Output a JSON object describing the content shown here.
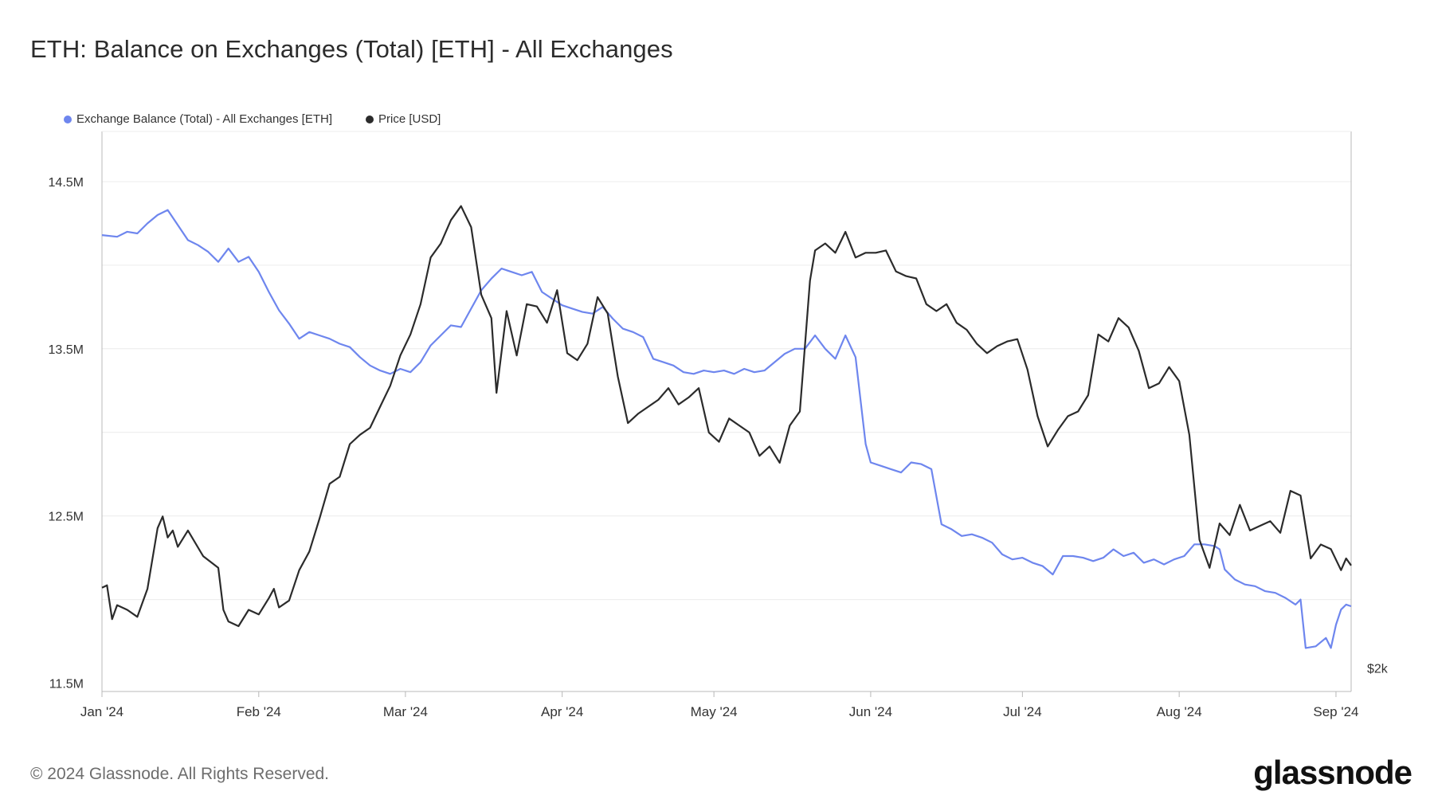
{
  "title": "ETH: Balance on Exchanges (Total) [ETH] - All Exchanges",
  "footer": "© 2024 Glassnode. All Rights Reserved.",
  "logo": "glassnode",
  "colors": {
    "balance": "#6e86ee",
    "price": "#2b2b2b",
    "grid": "#ececec",
    "axis": "#b8b8b8"
  },
  "chart_data": {
    "type": "line",
    "grid": true,
    "legend_position": "top-left",
    "x_ticks": [
      "Jan '24",
      "Feb '24",
      "Mar '24",
      "Apr '24",
      "May '24",
      "Jun '24",
      "Jul '24",
      "Aug '24",
      "Sep '24"
    ],
    "x_range": [
      "2024-01-01",
      "2024-09-04"
    ],
    "left_axis": {
      "ticks": [
        "14.5M",
        "13.5M",
        "12.5M",
        "11.5M"
      ],
      "tick_values": [
        14.5,
        13.5,
        12.5,
        11.5
      ],
      "range": [
        11.45,
        14.8
      ],
      "unit": "M ETH"
    },
    "right_axis": {
      "ticks": [
        "$2k"
      ],
      "tick_values": [
        2000
      ],
      "range": [
        1900,
        4300
      ],
      "unit": "USD"
    },
    "series": [
      {
        "name": "Exchange Balance (Total) - All Exchanges [ETH]",
        "axis": "left",
        "points": [
          [
            "2024-01-01",
            14.18
          ],
          [
            "2024-01-04",
            14.17
          ],
          [
            "2024-01-06",
            14.2
          ],
          [
            "2024-01-08",
            14.19
          ],
          [
            "2024-01-10",
            14.25
          ],
          [
            "2024-01-12",
            14.3
          ],
          [
            "2024-01-14",
            14.33
          ],
          [
            "2024-01-16",
            14.24
          ],
          [
            "2024-01-18",
            14.15
          ],
          [
            "2024-01-20",
            14.12
          ],
          [
            "2024-01-22",
            14.08
          ],
          [
            "2024-01-24",
            14.02
          ],
          [
            "2024-01-26",
            14.1
          ],
          [
            "2024-01-28",
            14.02
          ],
          [
            "2024-01-30",
            14.05
          ],
          [
            "2024-02-01",
            13.96
          ],
          [
            "2024-02-03",
            13.84
          ],
          [
            "2024-02-05",
            13.73
          ],
          [
            "2024-02-07",
            13.65
          ],
          [
            "2024-02-09",
            13.56
          ],
          [
            "2024-02-11",
            13.6
          ],
          [
            "2024-02-13",
            13.58
          ],
          [
            "2024-02-15",
            13.56
          ],
          [
            "2024-02-17",
            13.53
          ],
          [
            "2024-02-19",
            13.51
          ],
          [
            "2024-02-21",
            13.45
          ],
          [
            "2024-02-23",
            13.4
          ],
          [
            "2024-02-25",
            13.37
          ],
          [
            "2024-02-27",
            13.35
          ],
          [
            "2024-02-29",
            13.38
          ],
          [
            "2024-03-02",
            13.36
          ],
          [
            "2024-03-04",
            13.42
          ],
          [
            "2024-03-06",
            13.52
          ],
          [
            "2024-03-08",
            13.58
          ],
          [
            "2024-03-10",
            13.64
          ],
          [
            "2024-03-12",
            13.63
          ],
          [
            "2024-03-14",
            13.74
          ],
          [
            "2024-03-16",
            13.85
          ],
          [
            "2024-03-18",
            13.92
          ],
          [
            "2024-03-20",
            13.98
          ],
          [
            "2024-03-22",
            13.96
          ],
          [
            "2024-03-24",
            13.94
          ],
          [
            "2024-03-26",
            13.96
          ],
          [
            "2024-03-28",
            13.84
          ],
          [
            "2024-03-30",
            13.8
          ],
          [
            "2024-04-01",
            13.76
          ],
          [
            "2024-04-03",
            13.74
          ],
          [
            "2024-04-05",
            13.72
          ],
          [
            "2024-04-07",
            13.71
          ],
          [
            "2024-04-09",
            13.75
          ],
          [
            "2024-04-11",
            13.68
          ],
          [
            "2024-04-13",
            13.62
          ],
          [
            "2024-04-15",
            13.6
          ],
          [
            "2024-04-17",
            13.57
          ],
          [
            "2024-04-19",
            13.44
          ],
          [
            "2024-04-21",
            13.42
          ],
          [
            "2024-04-23",
            13.4
          ],
          [
            "2024-04-25",
            13.36
          ],
          [
            "2024-04-27",
            13.35
          ],
          [
            "2024-04-29",
            13.37
          ],
          [
            "2024-05-01",
            13.36
          ],
          [
            "2024-05-03",
            13.37
          ],
          [
            "2024-05-05",
            13.35
          ],
          [
            "2024-05-07",
            13.38
          ],
          [
            "2024-05-09",
            13.36
          ],
          [
            "2024-05-11",
            13.37
          ],
          [
            "2024-05-13",
            13.42
          ],
          [
            "2024-05-15",
            13.47
          ],
          [
            "2024-05-17",
            13.5
          ],
          [
            "2024-05-19",
            13.5
          ],
          [
            "2024-05-21",
            13.58
          ],
          [
            "2024-05-23",
            13.5
          ],
          [
            "2024-05-25",
            13.44
          ],
          [
            "2024-05-27",
            13.58
          ],
          [
            "2024-05-29",
            13.45
          ],
          [
            "2024-05-31",
            12.93
          ],
          [
            "2024-06-01",
            12.82
          ],
          [
            "2024-06-03",
            12.8
          ],
          [
            "2024-06-05",
            12.78
          ],
          [
            "2024-06-07",
            12.76
          ],
          [
            "2024-06-09",
            12.82
          ],
          [
            "2024-06-11",
            12.81
          ],
          [
            "2024-06-13",
            12.78
          ],
          [
            "2024-06-15",
            12.45
          ],
          [
            "2024-06-17",
            12.42
          ],
          [
            "2024-06-19",
            12.38
          ],
          [
            "2024-06-21",
            12.39
          ],
          [
            "2024-06-23",
            12.37
          ],
          [
            "2024-06-25",
            12.34
          ],
          [
            "2024-06-27",
            12.27
          ],
          [
            "2024-06-29",
            12.24
          ],
          [
            "2024-07-01",
            12.25
          ],
          [
            "2024-07-03",
            12.22
          ],
          [
            "2024-07-05",
            12.2
          ],
          [
            "2024-07-07",
            12.15
          ],
          [
            "2024-07-09",
            12.26
          ],
          [
            "2024-07-11",
            12.26
          ],
          [
            "2024-07-13",
            12.25
          ],
          [
            "2024-07-15",
            12.23
          ],
          [
            "2024-07-17",
            12.25
          ],
          [
            "2024-07-19",
            12.3
          ],
          [
            "2024-07-21",
            12.26
          ],
          [
            "2024-07-23",
            12.28
          ],
          [
            "2024-07-25",
            12.22
          ],
          [
            "2024-07-27",
            12.24
          ],
          [
            "2024-07-29",
            12.21
          ],
          [
            "2024-07-31",
            12.24
          ],
          [
            "2024-08-02",
            12.26
          ],
          [
            "2024-08-04",
            12.33
          ],
          [
            "2024-08-06",
            12.33
          ],
          [
            "2024-08-08",
            12.32
          ],
          [
            "2024-08-09",
            12.3
          ],
          [
            "2024-08-10",
            12.18
          ],
          [
            "2024-08-12",
            12.12
          ],
          [
            "2024-08-14",
            12.09
          ],
          [
            "2024-08-16",
            12.08
          ],
          [
            "2024-08-18",
            12.05
          ],
          [
            "2024-08-20",
            12.04
          ],
          [
            "2024-08-22",
            12.01
          ],
          [
            "2024-08-24",
            11.97
          ],
          [
            "2024-08-25",
            12.0
          ],
          [
            "2024-08-26",
            11.71
          ],
          [
            "2024-08-28",
            11.72
          ],
          [
            "2024-08-30",
            11.77
          ],
          [
            "2024-08-31",
            11.71
          ],
          [
            "2024-09-01",
            11.85
          ],
          [
            "2024-09-02",
            11.94
          ],
          [
            "2024-09-03",
            11.97
          ],
          [
            "2024-09-04",
            11.96
          ]
        ]
      },
      {
        "name": "Price [USD]",
        "axis": "right",
        "points": [
          [
            "2024-01-01",
            2345
          ],
          [
            "2024-01-02",
            2355
          ],
          [
            "2024-01-03",
            2210
          ],
          [
            "2024-01-04",
            2270
          ],
          [
            "2024-01-06",
            2250
          ],
          [
            "2024-01-08",
            2220
          ],
          [
            "2024-01-10",
            2340
          ],
          [
            "2024-01-12",
            2600
          ],
          [
            "2024-01-13",
            2650
          ],
          [
            "2024-01-14",
            2560
          ],
          [
            "2024-01-15",
            2590
          ],
          [
            "2024-01-16",
            2520
          ],
          [
            "2024-01-18",
            2590
          ],
          [
            "2024-01-21",
            2480
          ],
          [
            "2024-01-24",
            2430
          ],
          [
            "2024-01-25",
            2250
          ],
          [
            "2024-01-26",
            2200
          ],
          [
            "2024-01-28",
            2180
          ],
          [
            "2024-01-30",
            2250
          ],
          [
            "2024-02-01",
            2230
          ],
          [
            "2024-02-03",
            2300
          ],
          [
            "2024-02-04",
            2340
          ],
          [
            "2024-02-05",
            2260
          ],
          [
            "2024-02-07",
            2290
          ],
          [
            "2024-02-09",
            2420
          ],
          [
            "2024-02-11",
            2500
          ],
          [
            "2024-02-13",
            2640
          ],
          [
            "2024-02-15",
            2790
          ],
          [
            "2024-02-17",
            2820
          ],
          [
            "2024-02-19",
            2960
          ],
          [
            "2024-02-21",
            3000
          ],
          [
            "2024-02-23",
            3030
          ],
          [
            "2024-02-25",
            3120
          ],
          [
            "2024-02-27",
            3210
          ],
          [
            "2024-02-29",
            3340
          ],
          [
            "2024-03-02",
            3430
          ],
          [
            "2024-03-04",
            3560
          ],
          [
            "2024-03-06",
            3760
          ],
          [
            "2024-03-08",
            3820
          ],
          [
            "2024-03-10",
            3920
          ],
          [
            "2024-03-12",
            3980
          ],
          [
            "2024-03-14",
            3890
          ],
          [
            "2024-03-16",
            3600
          ],
          [
            "2024-03-18",
            3500
          ],
          [
            "2024-03-19",
            3180
          ],
          [
            "2024-03-21",
            3530
          ],
          [
            "2024-03-23",
            3340
          ],
          [
            "2024-03-25",
            3560
          ],
          [
            "2024-03-27",
            3550
          ],
          [
            "2024-03-29",
            3480
          ],
          [
            "2024-03-31",
            3620
          ],
          [
            "2024-04-02",
            3350
          ],
          [
            "2024-04-04",
            3320
          ],
          [
            "2024-04-06",
            3390
          ],
          [
            "2024-04-08",
            3590
          ],
          [
            "2024-04-10",
            3520
          ],
          [
            "2024-04-12",
            3250
          ],
          [
            "2024-04-14",
            3050
          ],
          [
            "2024-04-16",
            3090
          ],
          [
            "2024-04-18",
            3120
          ],
          [
            "2024-04-20",
            3150
          ],
          [
            "2024-04-22",
            3200
          ],
          [
            "2024-04-24",
            3130
          ],
          [
            "2024-04-26",
            3160
          ],
          [
            "2024-04-28",
            3200
          ],
          [
            "2024-04-30",
            3010
          ],
          [
            "2024-05-02",
            2970
          ],
          [
            "2024-05-04",
            3070
          ],
          [
            "2024-05-06",
            3040
          ],
          [
            "2024-05-08",
            3010
          ],
          [
            "2024-05-10",
            2910
          ],
          [
            "2024-05-12",
            2950
          ],
          [
            "2024-05-14",
            2880
          ],
          [
            "2024-05-16",
            3040
          ],
          [
            "2024-05-18",
            3100
          ],
          [
            "2024-05-20",
            3660
          ],
          [
            "2024-05-21",
            3790
          ],
          [
            "2024-05-23",
            3820
          ],
          [
            "2024-05-25",
            3780
          ],
          [
            "2024-05-27",
            3870
          ],
          [
            "2024-05-29",
            3760
          ],
          [
            "2024-05-31",
            3780
          ],
          [
            "2024-06-02",
            3780
          ],
          [
            "2024-06-04",
            3790
          ],
          [
            "2024-06-06",
            3700
          ],
          [
            "2024-06-08",
            3680
          ],
          [
            "2024-06-10",
            3670
          ],
          [
            "2024-06-12",
            3560
          ],
          [
            "2024-06-14",
            3530
          ],
          [
            "2024-06-16",
            3560
          ],
          [
            "2024-06-18",
            3480
          ],
          [
            "2024-06-20",
            3450
          ],
          [
            "2024-06-22",
            3390
          ],
          [
            "2024-06-24",
            3350
          ],
          [
            "2024-06-26",
            3380
          ],
          [
            "2024-06-28",
            3400
          ],
          [
            "2024-06-30",
            3410
          ],
          [
            "2024-07-02",
            3280
          ],
          [
            "2024-07-04",
            3080
          ],
          [
            "2024-07-06",
            2950
          ],
          [
            "2024-07-08",
            3020
          ],
          [
            "2024-07-10",
            3080
          ],
          [
            "2024-07-12",
            3100
          ],
          [
            "2024-07-14",
            3170
          ],
          [
            "2024-07-16",
            3430
          ],
          [
            "2024-07-18",
            3400
          ],
          [
            "2024-07-20",
            3500
          ],
          [
            "2024-07-22",
            3460
          ],
          [
            "2024-07-24",
            3360
          ],
          [
            "2024-07-26",
            3200
          ],
          [
            "2024-07-28",
            3220
          ],
          [
            "2024-07-30",
            3290
          ],
          [
            "2024-08-01",
            3230
          ],
          [
            "2024-08-03",
            3000
          ],
          [
            "2024-08-05",
            2550
          ],
          [
            "2024-08-07",
            2430
          ],
          [
            "2024-08-09",
            2620
          ],
          [
            "2024-08-11",
            2570
          ],
          [
            "2024-08-13",
            2700
          ],
          [
            "2024-08-15",
            2590
          ],
          [
            "2024-08-17",
            2610
          ],
          [
            "2024-08-19",
            2630
          ],
          [
            "2024-08-21",
            2580
          ],
          [
            "2024-08-23",
            2760
          ],
          [
            "2024-08-25",
            2740
          ],
          [
            "2024-08-27",
            2470
          ],
          [
            "2024-08-29",
            2530
          ],
          [
            "2024-08-31",
            2510
          ],
          [
            "2024-09-02",
            2420
          ],
          [
            "2024-09-03",
            2470
          ],
          [
            "2024-09-04",
            2440
          ]
        ]
      }
    ]
  }
}
